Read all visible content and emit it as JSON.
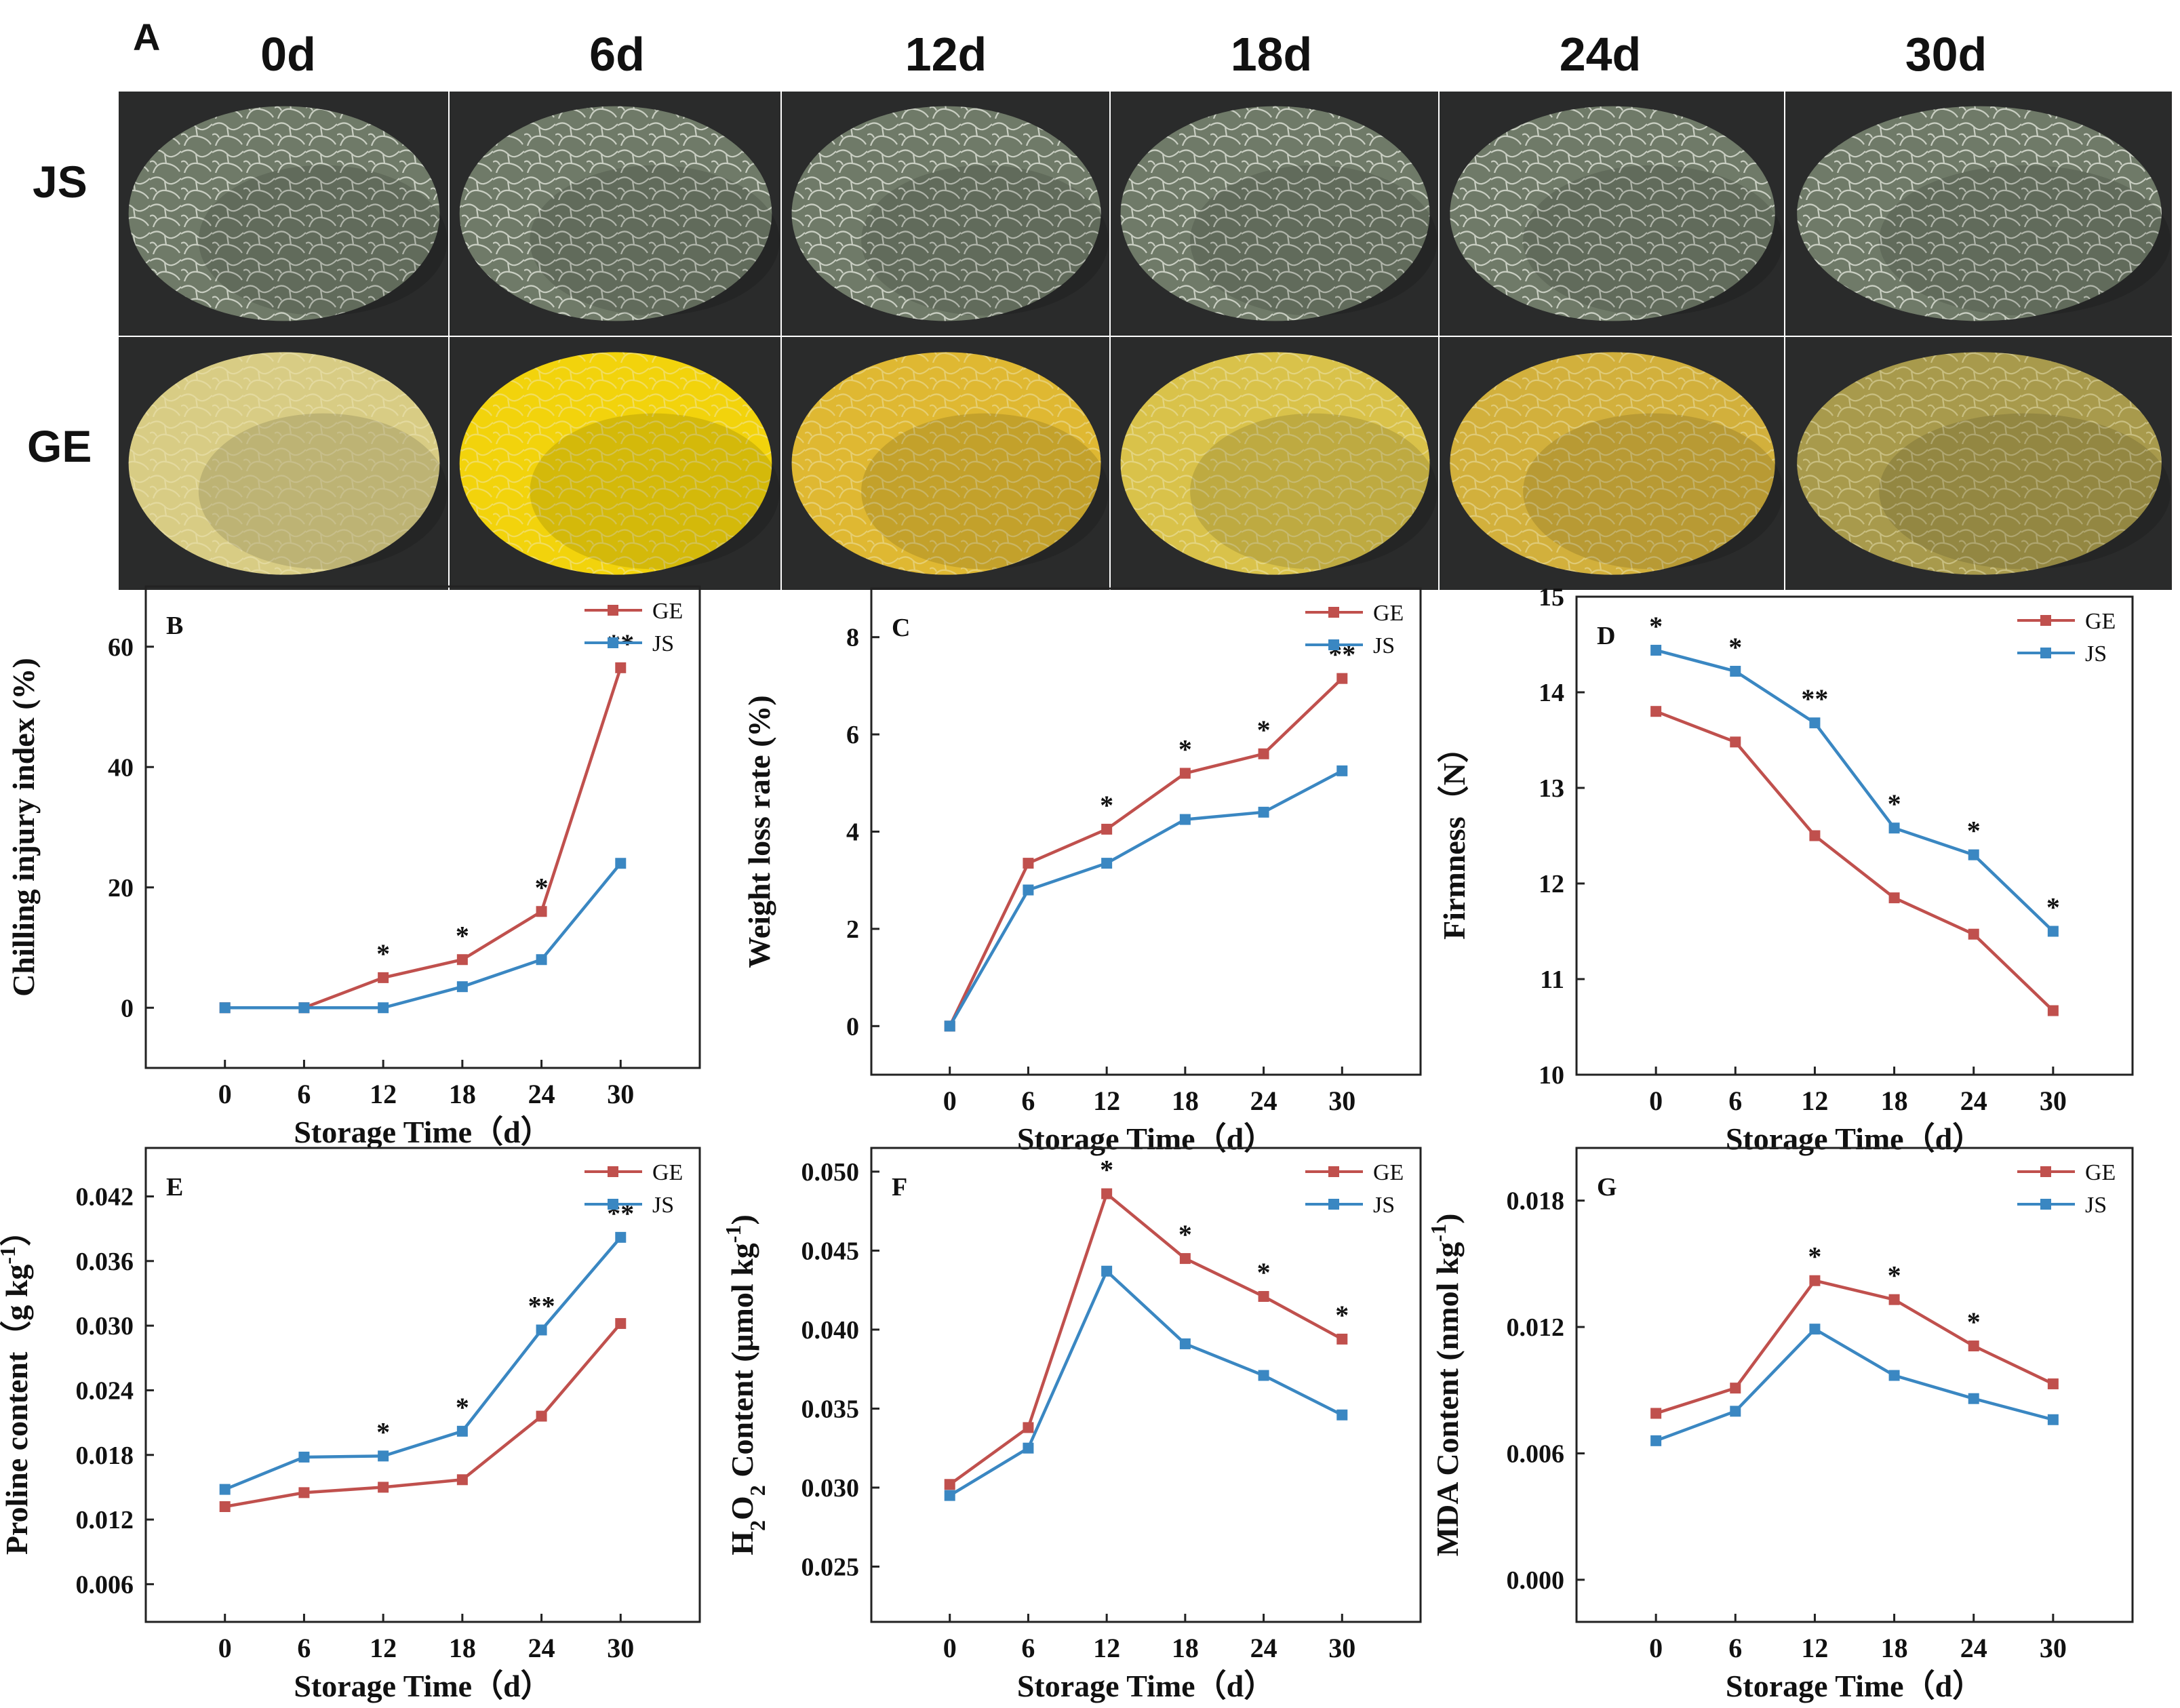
{
  "panel_a": {
    "letter": "A",
    "days": [
      "0d",
      "6d",
      "12d",
      "18d",
      "24d",
      "30d"
    ],
    "rows": [
      "JS",
      "GE"
    ],
    "colors": {
      "js_rind": "#6f7a68",
      "js_net": "#d9ddd2",
      "ge_rind": [
        "#d8cc84",
        "#f2d30c",
        "#dfb832",
        "#d9c24a",
        "#d2b03c",
        "#a89a4c"
      ],
      "ge_net": "#f1e9c0",
      "background": "#2a2b2b"
    }
  },
  "colors": {
    "GE": "#c0504d",
    "JS": "#3a87c2",
    "axis": "#222222"
  },
  "chart_data": [
    {
      "id": "B",
      "type": "line",
      "ylabel": "Chilling injury index (%)",
      "xlabel": "Storage Time（d）",
      "x": [
        0,
        6,
        12,
        18,
        24,
        30
      ],
      "ylim": [
        -10,
        70
      ],
      "yticks": [
        0,
        20,
        40,
        60
      ],
      "series": [
        {
          "name": "GE",
          "values": [
            0,
            0,
            5,
            8,
            16,
            56.5
          ]
        },
        {
          "name": "JS",
          "values": [
            0,
            0,
            0,
            3.5,
            8,
            24
          ]
        }
      ],
      "annotations": [
        "",
        "",
        "*",
        "*",
        "*",
        "**"
      ],
      "legend": "top-right",
      "grid": false
    },
    {
      "id": "C",
      "type": "line",
      "ylabel": "Weight loss rate (%)",
      "xlabel": "Storage Time（d）",
      "x": [
        0,
        6,
        12,
        18,
        24,
        30
      ],
      "ylim": [
        -1,
        9
      ],
      "yticks": [
        0,
        2,
        4,
        6,
        8
      ],
      "series": [
        {
          "name": "GE",
          "values": [
            0,
            3.35,
            4.05,
            5.2,
            5.6,
            7.15
          ]
        },
        {
          "name": "JS",
          "values": [
            0,
            2.8,
            3.35,
            4.25,
            4.4,
            5.25
          ]
        }
      ],
      "annotations": [
        "",
        "",
        "*",
        "*",
        "*",
        "**"
      ],
      "legend": "top-right",
      "grid": false
    },
    {
      "id": "D",
      "type": "line",
      "ylabel": "Firmness（N）",
      "xlabel": "Storage Time（d）",
      "x": [
        0,
        6,
        12,
        18,
        24,
        30
      ],
      "ylim": [
        10,
        15
      ],
      "yticks": [
        10,
        11,
        12,
        13,
        14,
        15
      ],
      "series": [
        {
          "name": "GE",
          "values": [
            13.8,
            13.48,
            12.5,
            11.85,
            11.47,
            10.67
          ]
        },
        {
          "name": "JS",
          "values": [
            14.44,
            14.22,
            13.68,
            12.58,
            12.3,
            11.5
          ]
        }
      ],
      "annotations": [
        "*",
        "*",
        "**",
        "*",
        "*",
        "*"
      ],
      "legend": "top-right",
      "grid": false
    },
    {
      "id": "E",
      "type": "line",
      "ylabel": "Proline content（g kg-1）",
      "xlabel": "Storage Time（d）",
      "x": [
        0,
        6,
        12,
        18,
        24,
        30
      ],
      "ylim": [
        0.0025,
        0.0465
      ],
      "yticks": [
        0.006,
        0.012,
        0.018,
        0.024,
        0.03,
        0.036,
        0.042
      ],
      "ytick_labels": [
        "0.006",
        "0.012",
        "0.018",
        "0.024",
        "0.030",
        "0.036",
        "0.042"
      ],
      "series": [
        {
          "name": "GE",
          "values": [
            0.0132,
            0.0145,
            0.015,
            0.0157,
            0.0216,
            0.0302
          ]
        },
        {
          "name": "JS",
          "values": [
            0.0148,
            0.0178,
            0.0179,
            0.0202,
            0.0296,
            0.0382
          ]
        }
      ],
      "annotations": [
        "",
        "",
        "*",
        "*",
        "**",
        "**"
      ],
      "legend": "top-right",
      "grid": false
    },
    {
      "id": "F",
      "type": "line",
      "ylabel": "H2O2 Content (μmol kg-1)",
      "xlabel": "Storage Time（d）",
      "x": [
        0,
        6,
        12,
        18,
        24,
        30
      ],
      "ylim": [
        0.0215,
        0.0515
      ],
      "yticks": [
        0.025,
        0.03,
        0.035,
        0.04,
        0.045,
        0.05
      ],
      "ytick_labels": [
        "0.025",
        "0.030",
        "0.035",
        "0.040",
        "0.045",
        "0.050"
      ],
      "series": [
        {
          "name": "GE",
          "values": [
            0.0302,
            0.0338,
            0.0486,
            0.0445,
            0.0421,
            0.0394
          ]
        },
        {
          "name": "JS",
          "values": [
            0.0295,
            0.0325,
            0.0437,
            0.0391,
            0.0371,
            0.0346
          ]
        }
      ],
      "annotations": [
        "",
        "",
        "*",
        "*",
        "*",
        "*"
      ],
      "legend": "top-right",
      "grid": false
    },
    {
      "id": "G",
      "type": "line",
      "ylabel": "MDA Content (nmol kg-1)",
      "xlabel": "Storage Time（d）",
      "x": [
        0,
        6,
        12,
        18,
        24,
        30
      ],
      "ylim": [
        -0.002,
        0.0205
      ],
      "yticks": [
        0,
        0.006,
        0.012,
        0.018
      ],
      "ytick_labels": [
        "0.000",
        "0.006",
        "0.012",
        "0.018"
      ],
      "series": [
        {
          "name": "GE",
          "values": [
            0.0079,
            0.0091,
            0.0142,
            0.0133,
            0.0111,
            0.0093
          ]
        },
        {
          "name": "JS",
          "values": [
            0.0066,
            0.008,
            0.0119,
            0.0097,
            0.0086,
            0.0076
          ]
        }
      ],
      "annotations": [
        "",
        "",
        "*",
        "*",
        "*",
        ""
      ],
      "legend": "top-right",
      "grid": false
    }
  ]
}
